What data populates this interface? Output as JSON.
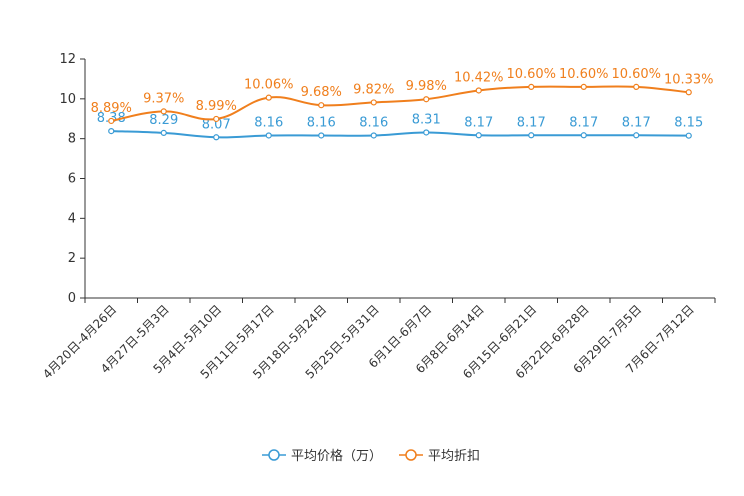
{
  "chart_data": {
    "type": "line",
    "categories": [
      "4月20日-4月26日",
      "4月27日-5月3日",
      "5月4日-5月10日",
      "5月11日-5月17日",
      "5月18日-5月24日",
      "5月25日-5月31日",
      "6月1日-6月7日",
      "6月8日-6月14日",
      "6月15日-6月21日",
      "6月22日-6月28日",
      "6月29日-7月5日",
      "7月6日-7月12日"
    ],
    "ylim": [
      0,
      12
    ],
    "yticks": [
      0,
      2,
      4,
      6,
      8,
      10,
      12
    ],
    "series": [
      {
        "name": "平均价格（万）",
        "color": "#3a9bd5",
        "values": [
          8.38,
          8.29,
          8.07,
          8.16,
          8.16,
          8.16,
          8.31,
          8.17,
          8.17,
          8.17,
          8.17,
          8.15
        ],
        "labels": [
          "8.38",
          "8.29",
          "8.07",
          "8.16",
          "8.16",
          "8.16",
          "8.31",
          "8.17",
          "8.17",
          "8.17",
          "8.17",
          "8.15"
        ]
      },
      {
        "name": "平均折扣",
        "color": "#f07f1d",
        "values": [
          8.89,
          9.37,
          8.99,
          10.06,
          9.68,
          9.82,
          9.98,
          10.42,
          10.6,
          10.6,
          10.6,
          10.33
        ],
        "labels": [
          "8.89%",
          "9.37%",
          "8.99%",
          "10.06%",
          "9.68%",
          "9.82%",
          "9.98%",
          "10.42%",
          "10.60%",
          "10.60%",
          "10.60%",
          "10.33%"
        ]
      }
    ],
    "legend_position": "bottom-center"
  }
}
